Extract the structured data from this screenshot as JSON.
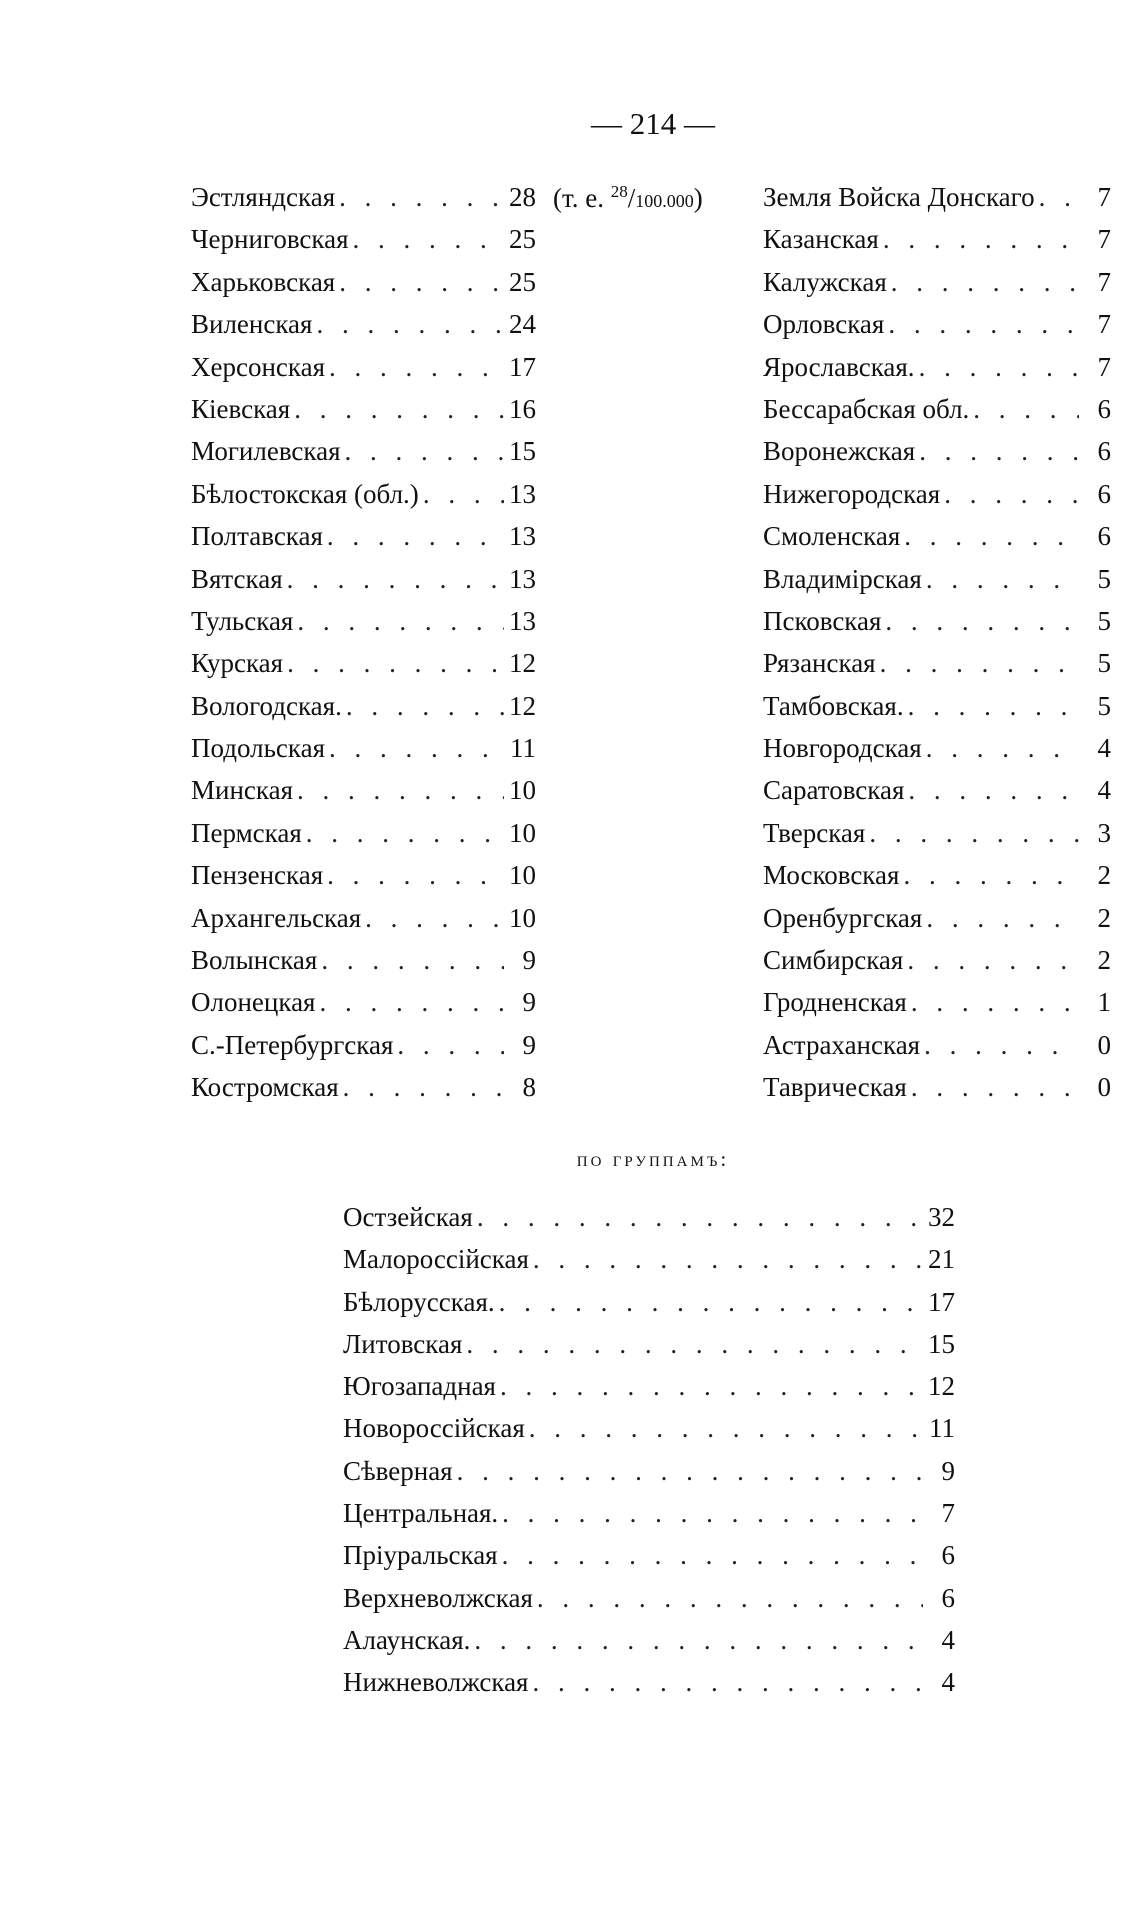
{
  "page_number": "— 214 —",
  "first_row_note": {
    "prefix": "(т. е. ",
    "numerator": "28",
    "denominator": "100.000",
    "suffix": ")"
  },
  "left_column": [
    {
      "name": "Эстляндская",
      "value": "28"
    },
    {
      "name": "Черниговская",
      "value": "25"
    },
    {
      "name": "Харьковская",
      "value": "25"
    },
    {
      "name": "Виленская",
      "value": "24"
    },
    {
      "name": "Херсонская",
      "value": "17"
    },
    {
      "name": "Кіевская",
      "value": "16"
    },
    {
      "name": "Могилевская",
      "value": "15"
    },
    {
      "name": "Бѣлостокская (обл.)",
      "value": "13"
    },
    {
      "name": "Полтавская",
      "value": "13"
    },
    {
      "name": "Вятская",
      "value": "13"
    },
    {
      "name": "Тульская",
      "value": "13"
    },
    {
      "name": "Курская",
      "value": "12"
    },
    {
      "name": "Вологодская.",
      "value": "12"
    },
    {
      "name": "Подольская",
      "value": "11"
    },
    {
      "name": "Минская",
      "value": "10"
    },
    {
      "name": "Пермская",
      "value": "10"
    },
    {
      "name": "Пензенская",
      "value": "10"
    },
    {
      "name": "Архангельская",
      "value": "10"
    },
    {
      "name": "Волынская",
      "value": "9"
    },
    {
      "name": "Олонецкая",
      "value": "9"
    },
    {
      "name": "С.-Петербургская",
      "value": "9"
    },
    {
      "name": "Костромская",
      "value": "8"
    }
  ],
  "right_column": [
    {
      "name": "Земля Войска Донскаго",
      "value": "7"
    },
    {
      "name": "Казанская",
      "value": "7"
    },
    {
      "name": "Калужская",
      "value": "7"
    },
    {
      "name": "Орловская",
      "value": "7"
    },
    {
      "name": "Ярославская.",
      "value": "7"
    },
    {
      "name": "Бессарабская обл.",
      "value": "6"
    },
    {
      "name": "Воронежская",
      "value": "6"
    },
    {
      "name": "Нижегородская",
      "value": "6"
    },
    {
      "name": "Смоленская",
      "value": "6"
    },
    {
      "name": "Владимірская",
      "value": "5"
    },
    {
      "name": "Псковская",
      "value": "5"
    },
    {
      "name": "Рязанская",
      "value": "5"
    },
    {
      "name": "Тамбовская.",
      "value": "5"
    },
    {
      "name": "Новгородская",
      "value": "4"
    },
    {
      "name": "Саратовская",
      "value": "4"
    },
    {
      "name": "Тверская",
      "value": "3"
    },
    {
      "name": "Московская",
      "value": "2"
    },
    {
      "name": "Оренбургская",
      "value": "2"
    },
    {
      "name": "Симбирская",
      "value": "2"
    },
    {
      "name": "Гродненская",
      "value": "1"
    },
    {
      "name": "Астраханская",
      "value": "0"
    },
    {
      "name": "Таврическая",
      "value": "0"
    }
  ],
  "groups_heading": "по группамъ:",
  "groups": [
    {
      "name": "Остзейская",
      "value": "32"
    },
    {
      "name": "Малороссійская",
      "value": "21"
    },
    {
      "name": "Бѣлорусская.",
      "value": "17"
    },
    {
      "name": "Литовская",
      "value": "15"
    },
    {
      "name": "Югозападная",
      "value": "12"
    },
    {
      "name": "Новороссійская",
      "value": "11"
    },
    {
      "name": "Сѣверная",
      "value": "9"
    },
    {
      "name": "Центральная.",
      "value": "7"
    },
    {
      "name": "Пріуральская",
      "value": "6"
    },
    {
      "name": "Верхневолжская",
      "value": "6"
    },
    {
      "name": "Алаунская.",
      "value": "4"
    },
    {
      "name": "Нижневолжская",
      "value": "4"
    }
  ]
}
